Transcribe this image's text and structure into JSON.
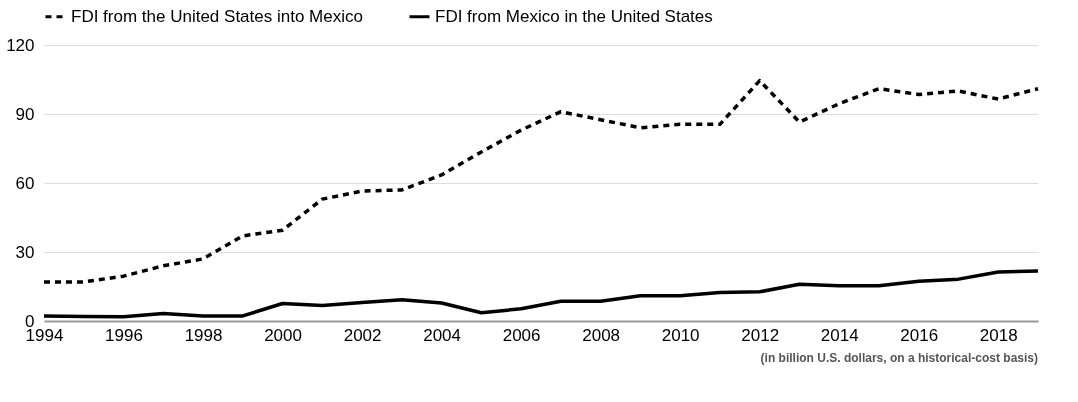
{
  "chart_data": {
    "type": "line",
    "x": [
      1994,
      1995,
      1996,
      1997,
      1998,
      1999,
      2000,
      2001,
      2002,
      2003,
      2004,
      2005,
      2006,
      2007,
      2008,
      2009,
      2010,
      2011,
      2012,
      2013,
      2014,
      2015,
      2016,
      2017,
      2018,
      2019
    ],
    "series": [
      {
        "name": "FDI from the United States into Mexico",
        "color": "#000000",
        "line_style": "dashed",
        "values": [
          17,
          17,
          19.5,
          24,
          27,
          37,
          39.5,
          53,
          56.5,
          57,
          63.5,
          73.5,
          83,
          91,
          87.5,
          84,
          85.5,
          85.5,
          104.5,
          86.5,
          94.5,
          101,
          98.5,
          100,
          96.5,
          101
        ]
      },
      {
        "name": "FDI from Mexico in the United States",
        "color": "#000000",
        "line_style": "solid",
        "values": [
          2.2,
          2,
          1.8,
          3.3,
          2.2,
          2.2,
          7.6,
          6.7,
          8,
          9.2,
          7.8,
          3.6,
          5.3,
          8.6,
          8.6,
          11,
          11,
          12.4,
          12.7,
          16,
          15.3,
          15.3,
          17.3,
          18.2,
          21.3,
          21.7
        ]
      }
    ],
    "xlim": [
      1994,
      2019
    ],
    "xticks": [
      1994,
      1996,
      1998,
      2000,
      2002,
      2004,
      2006,
      2008,
      2010,
      2012,
      2014,
      2016,
      2018
    ],
    "ylim": [
      0,
      120
    ],
    "yticks": [
      0,
      30,
      60,
      90,
      120
    ],
    "grid": "y",
    "legend": "top",
    "marker": "none",
    "annotations": [
      "(in billion U.S. dollars, on a historical-cost basis)"
    ]
  }
}
